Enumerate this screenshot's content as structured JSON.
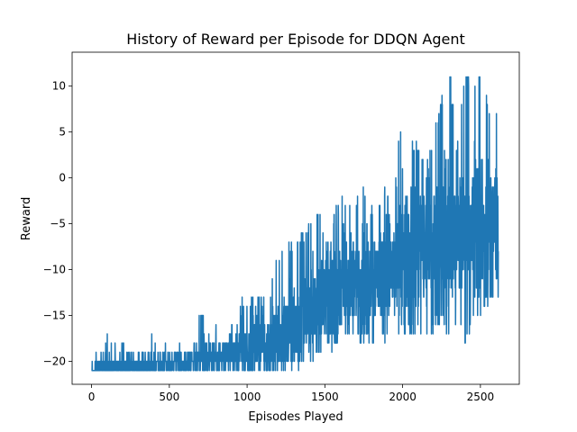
{
  "chart_data": {
    "type": "line",
    "title": "History of Reward per Episode for DDQN Agent",
    "xlabel": "Episodes Played",
    "ylabel": "Reward",
    "xlim": [
      -125,
      2750
    ],
    "ylim": [
      -22.5,
      13.7
    ],
    "xticks": [
      0,
      500,
      1000,
      1500,
      2000,
      2500
    ],
    "yticks": [
      -20,
      -15,
      -10,
      -5,
      0,
      5,
      10
    ],
    "grid": false,
    "legend": "none",
    "series": [
      {
        "color": "#1f77b4",
        "x": [
          0,
          50,
          100,
          150,
          200,
          250,
          300,
          350,
          400,
          450,
          500,
          550,
          600,
          650,
          700,
          750,
          800,
          850,
          900,
          950,
          1000,
          1050,
          1100,
          1150,
          1200,
          1250,
          1300,
          1350,
          1400,
          1450,
          1500,
          1550,
          1600,
          1650,
          1700,
          1750,
          1800,
          1850,
          1900,
          1950,
          2000,
          2050,
          2100,
          2150,
          2200,
          2250,
          2300,
          2350,
          2400,
          2450,
          2500,
          2550,
          2600
        ],
        "mean": [
          -21,
          -20.8,
          -20.7,
          -20.6,
          -20.6,
          -20.5,
          -20.5,
          -20.4,
          -20.4,
          -20.3,
          -20.2,
          -20.1,
          -20.0,
          -19.9,
          -19.7,
          -19.6,
          -19.5,
          -19.3,
          -19.2,
          -19.0,
          -18.8,
          -18.5,
          -18.2,
          -17.8,
          -17.3,
          -16.8,
          -16.0,
          -15.2,
          -14.2,
          -13.5,
          -13.0,
          -12.5,
          -12.0,
          -11.5,
          -11.0,
          -10.8,
          -10.6,
          -10.5,
          -10.2,
          -10.0,
          -9.5,
          -9.0,
          -8.5,
          -8.0,
          -7.5,
          -7.0,
          -7.5,
          -6.5,
          -6.0,
          -6.0,
          -5.5,
          -5.5,
          -5.5
        ],
        "low": [
          -21,
          -21,
          -21,
          -21,
          -21,
          -21,
          -21,
          -21,
          -21,
          -21,
          -21,
          -21,
          -21,
          -21,
          -21,
          -21,
          -21,
          -21,
          -21,
          -21,
          -21,
          -21,
          -21,
          -21,
          -21,
          -21,
          -21,
          -21,
          -20,
          -20,
          -19,
          -19,
          -19,
          -18,
          -18,
          -18,
          -18,
          -18,
          -18,
          -18,
          -17,
          -17,
          -17,
          -17,
          -17,
          -16,
          -17,
          -16,
          -18,
          -16,
          -15,
          -14,
          -14
        ],
        "high": [
          -20,
          -18,
          -17,
          -18,
          -18,
          -18,
          -18,
          -18,
          -17,
          -18,
          -18,
          -18,
          -18,
          -18,
          -14,
          -16,
          -16,
          -16,
          -16,
          -13,
          -13,
          -13,
          -12,
          -12,
          -8,
          -7,
          -6,
          -6,
          -5,
          -3,
          -6,
          -4,
          -2,
          -2,
          -2,
          -1,
          -3,
          -2,
          -1,
          1,
          7,
          3,
          5,
          1,
          5,
          9,
          12,
          5,
          11,
          11,
          12,
          8,
          8
        ]
      }
    ]
  }
}
